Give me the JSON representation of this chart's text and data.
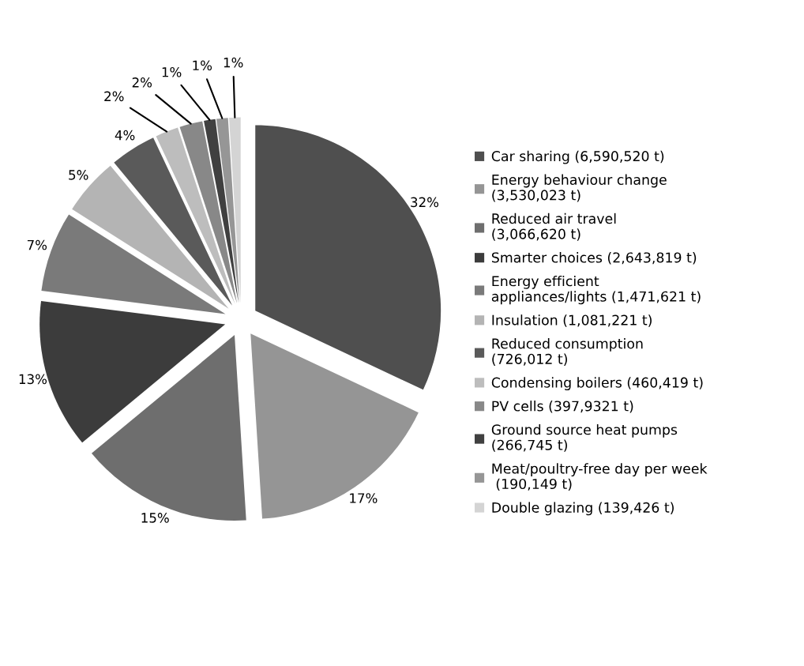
{
  "chart_data": {
    "type": "pie",
    "categories": [
      "Car sharing (6,590,520 t)",
      "Energy behaviour change\n(3,530,023 t)",
      "Reduced air travel\n(3,066,620 t)",
      "Smarter choices (2,643,819 t)",
      "Energy efficient\nappliances/lights (1,471,621 t)",
      "Insulation (1,081,221 t)",
      "Reduced consumption\n(726,012 t)",
      "Condensing boilers (460,419 t)",
      "PV cells (397,9321 t)",
      "Ground source heat pumps\n(266,745 t)",
      "Meat/poultry-free day per week\n (190,149 t)",
      "Double glazing (139,426 t)"
    ],
    "values": [
      32,
      17,
      15,
      13,
      7,
      5,
      4,
      2,
      2,
      1,
      1,
      1
    ],
    "value_labels": [
      "32%",
      "17%",
      "15%",
      "13%",
      "7%",
      "5%",
      "4%",
      "2%",
      "2%",
      "1%",
      "1%",
      "1%"
    ],
    "colors": [
      "#4f4f4f",
      "#959595",
      "#6e6e6e",
      "#3c3c3c",
      "#7a7a7a",
      "#b4b4b4",
      "#5a5a5a",
      "#bdbdbd",
      "#888888",
      "#404040",
      "#969696",
      "#d4d4d4"
    ],
    "legend": "right"
  }
}
